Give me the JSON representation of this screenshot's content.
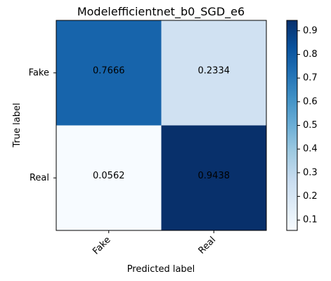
{
  "chart_data": {
    "type": "heatmap",
    "title": "Modelefficientnet_b0_SGD_e6",
    "xlabel": "Predicted label",
    "ylabel": "True label",
    "x_categories": [
      "Fake",
      "Real"
    ],
    "y_categories": [
      "Fake",
      "Real"
    ],
    "values": [
      [
        0.7666,
        0.2334
      ],
      [
        0.0562,
        0.9438
      ]
    ],
    "cell_labels": [
      [
        "0.7666",
        "0.2334"
      ],
      [
        "0.0562",
        "0.9438"
      ]
    ],
    "colormap": "Blues",
    "colorbar": {
      "range": [
        0.0562,
        0.9438
      ],
      "ticks": [
        0.1,
        0.2,
        0.3,
        0.4,
        0.5,
        0.6,
        0.7,
        0.8,
        0.9
      ],
      "tick_labels": [
        "0.1",
        "0.2",
        "0.3",
        "0.4",
        "0.5",
        "0.6",
        "0.7",
        "0.8",
        "0.9"
      ]
    },
    "grid": false
  }
}
